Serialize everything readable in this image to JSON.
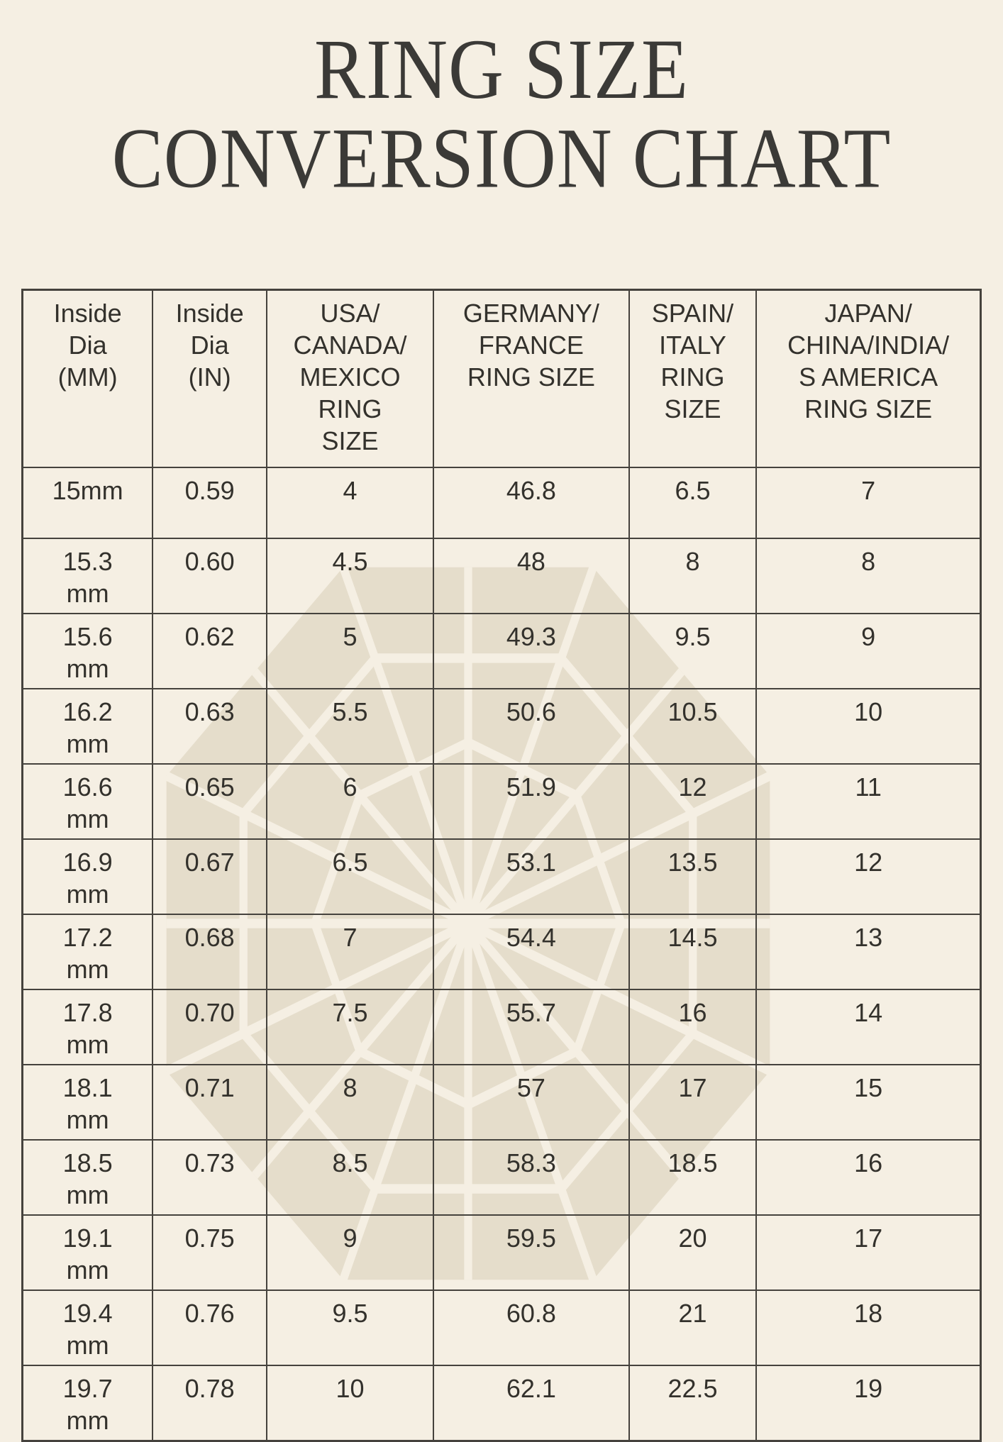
{
  "title": {
    "line1": "RING SIZE",
    "line2": "CONVERSION CHART"
  },
  "colors": {
    "background": "#f5efe3",
    "title_text": "#3b3a37",
    "table_text": "#33312c",
    "table_line": "#45423d",
    "watermark": "#e5ddcb"
  },
  "watermark": {
    "icon": "diamond-gem-top-view-watermark"
  },
  "chart_data": {
    "type": "table",
    "title": "RING SIZE CONVERSION CHART",
    "columns": [
      "Inside\nDia\n(MM)",
      "Inside\nDia\n(IN)",
      "USA/\nCANADA/\nMEXICO\nRING\nSIZE",
      "GERMANY/\nFRANCE\nRING SIZE",
      "SPAIN/\nITALY\nRING\nSIZE",
      "JAPAN/\nCHINA/INDIA/\nS AMERICA\nRING SIZE"
    ],
    "rows": [
      [
        "15mm",
        "0.59",
        "4",
        "46.8",
        "6.5",
        "7"
      ],
      [
        "15.3\nmm",
        "0.60",
        "4.5",
        "48",
        "8",
        "8"
      ],
      [
        "15.6\nmm",
        "0.62",
        "5",
        "49.3",
        "9.5",
        "9"
      ],
      [
        "16.2\nmm",
        "0.63",
        "5.5",
        "50.6",
        "10.5",
        "10"
      ],
      [
        "16.6\nmm",
        "0.65",
        "6",
        "51.9",
        "12",
        "11"
      ],
      [
        "16.9\nmm",
        "0.67",
        "6.5",
        "53.1",
        "13.5",
        "12"
      ],
      [
        "17.2\nmm",
        "0.68",
        "7",
        "54.4",
        "14.5",
        "13"
      ],
      [
        "17.8\nmm",
        "0.70",
        "7.5",
        "55.7",
        "16",
        "14"
      ],
      [
        "18.1\nmm",
        "0.71",
        "8",
        "57",
        "17",
        "15"
      ],
      [
        "18.5\nmm",
        "0.73",
        "8.5",
        "58.3",
        "18.5",
        "16"
      ],
      [
        "19.1\nmm",
        "0.75",
        "9",
        "59.5",
        "20",
        "17"
      ],
      [
        "19.4\nmm",
        "0.76",
        "9.5",
        "60.8",
        "21",
        "18"
      ],
      [
        "19.7\nmm",
        "0.78",
        "10",
        "62.1",
        "22.5",
        "19"
      ]
    ]
  }
}
